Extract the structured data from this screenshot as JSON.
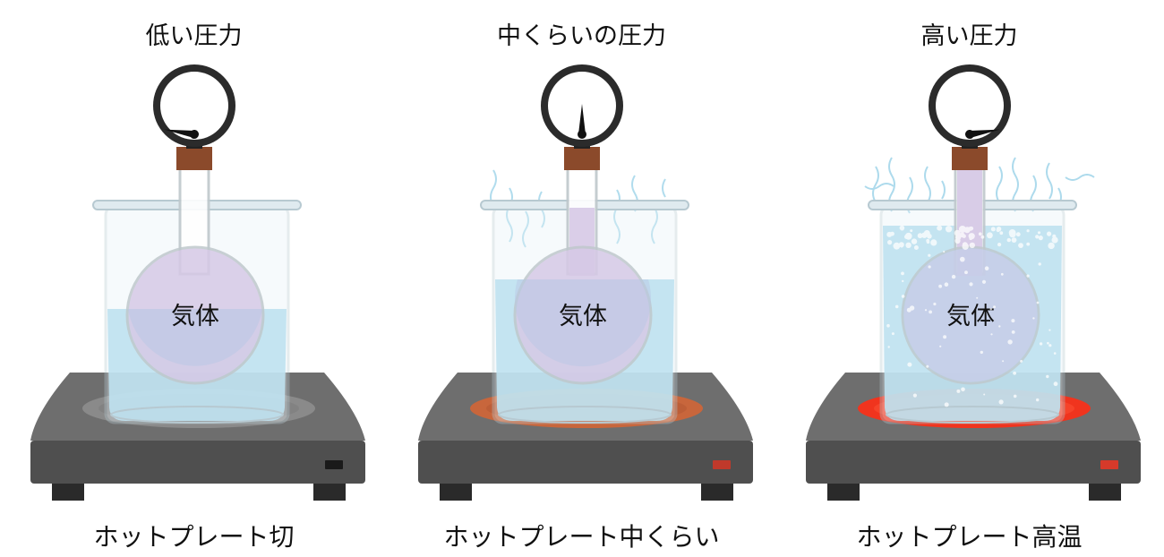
{
  "panels": [
    {
      "title": "低い圧力",
      "gas_label": "気体",
      "caption": "ホットプレート切",
      "hotplate_state": "off",
      "gauge_level": 0.2,
      "burner_color": "#8a8a8a",
      "indicator_color": "#1a1a1a",
      "boiling": false
    },
    {
      "title": "中くらいの圧力",
      "gas_label": "気体",
      "caption": "ホットプレート中くらい",
      "hotplate_state": "medium",
      "gauge_level": 0.5,
      "burner_color": "#c8663c",
      "indicator_color": "#c0392b",
      "boiling": false
    },
    {
      "title": "高い圧力",
      "gas_label": "気体",
      "caption": "ホットプレート高温",
      "hotplate_state": "high",
      "gauge_level": 0.8,
      "burner_color": "#f0341e",
      "indicator_color": "#d63a2a",
      "boiling": true
    }
  ],
  "colors": {
    "water": "#a9d9ec",
    "gas": "#d6c9e6",
    "hotplate_top": "#6e6e6e",
    "hotplate_front": "#4f4f4f",
    "gauge_rim": "#2b2b2b",
    "stopper": "#8b4a2b"
  }
}
